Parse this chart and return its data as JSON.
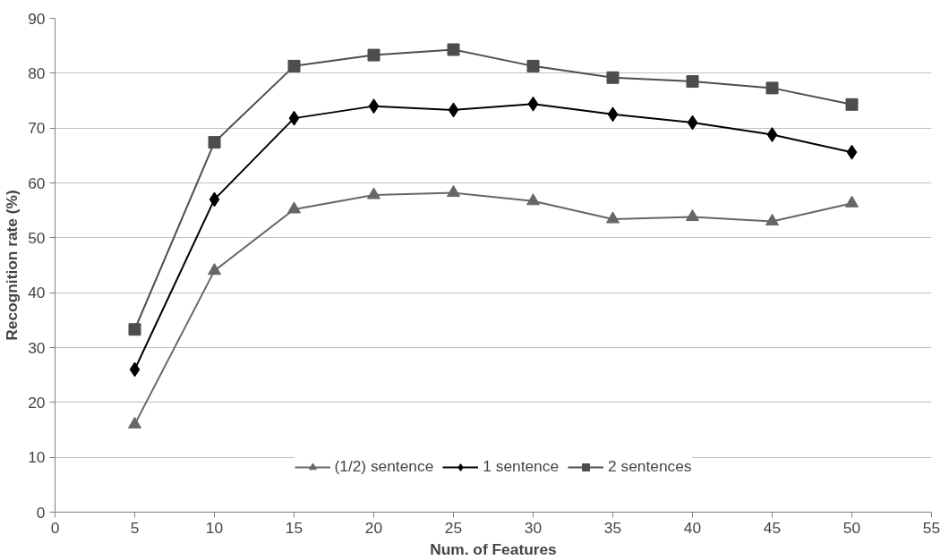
{
  "chart_data": {
    "type": "line",
    "xlabel": "Num. of Features",
    "ylabel": "Recognition rate (%)",
    "x": [
      5,
      10,
      15,
      20,
      25,
      30,
      35,
      40,
      45,
      50
    ],
    "series": [
      {
        "name": "(1/2) sentence",
        "color": "#666666",
        "marker": "triangle",
        "values": [
          16,
          44,
          55.2,
          57.8,
          58.2,
          56.7,
          53.4,
          53.8,
          53,
          56.3
        ]
      },
      {
        "name": "1 sentence",
        "color": "#000000",
        "marker": "diamond",
        "values": [
          26,
          57,
          71.8,
          74,
          73.3,
          74.4,
          72.5,
          71,
          68.8,
          65.6
        ]
      },
      {
        "name": "2 sentences",
        "color": "#4d4d4d",
        "marker": "square",
        "values": [
          33.3,
          67.4,
          81.3,
          83.3,
          84.3,
          81.3,
          79.2,
          78.5,
          77.3,
          74.3
        ]
      }
    ],
    "xlim": [
      0,
      55
    ],
    "ylim": [
      0,
      90
    ],
    "xticks": [
      0,
      5,
      10,
      15,
      20,
      25,
      30,
      35,
      40,
      45,
      50,
      55
    ],
    "yticks": [
      0,
      10,
      20,
      30,
      40,
      50,
      60,
      70,
      80,
      90
    ],
    "grid": "y",
    "legend": "bottom",
    "line_style": "solid"
  }
}
